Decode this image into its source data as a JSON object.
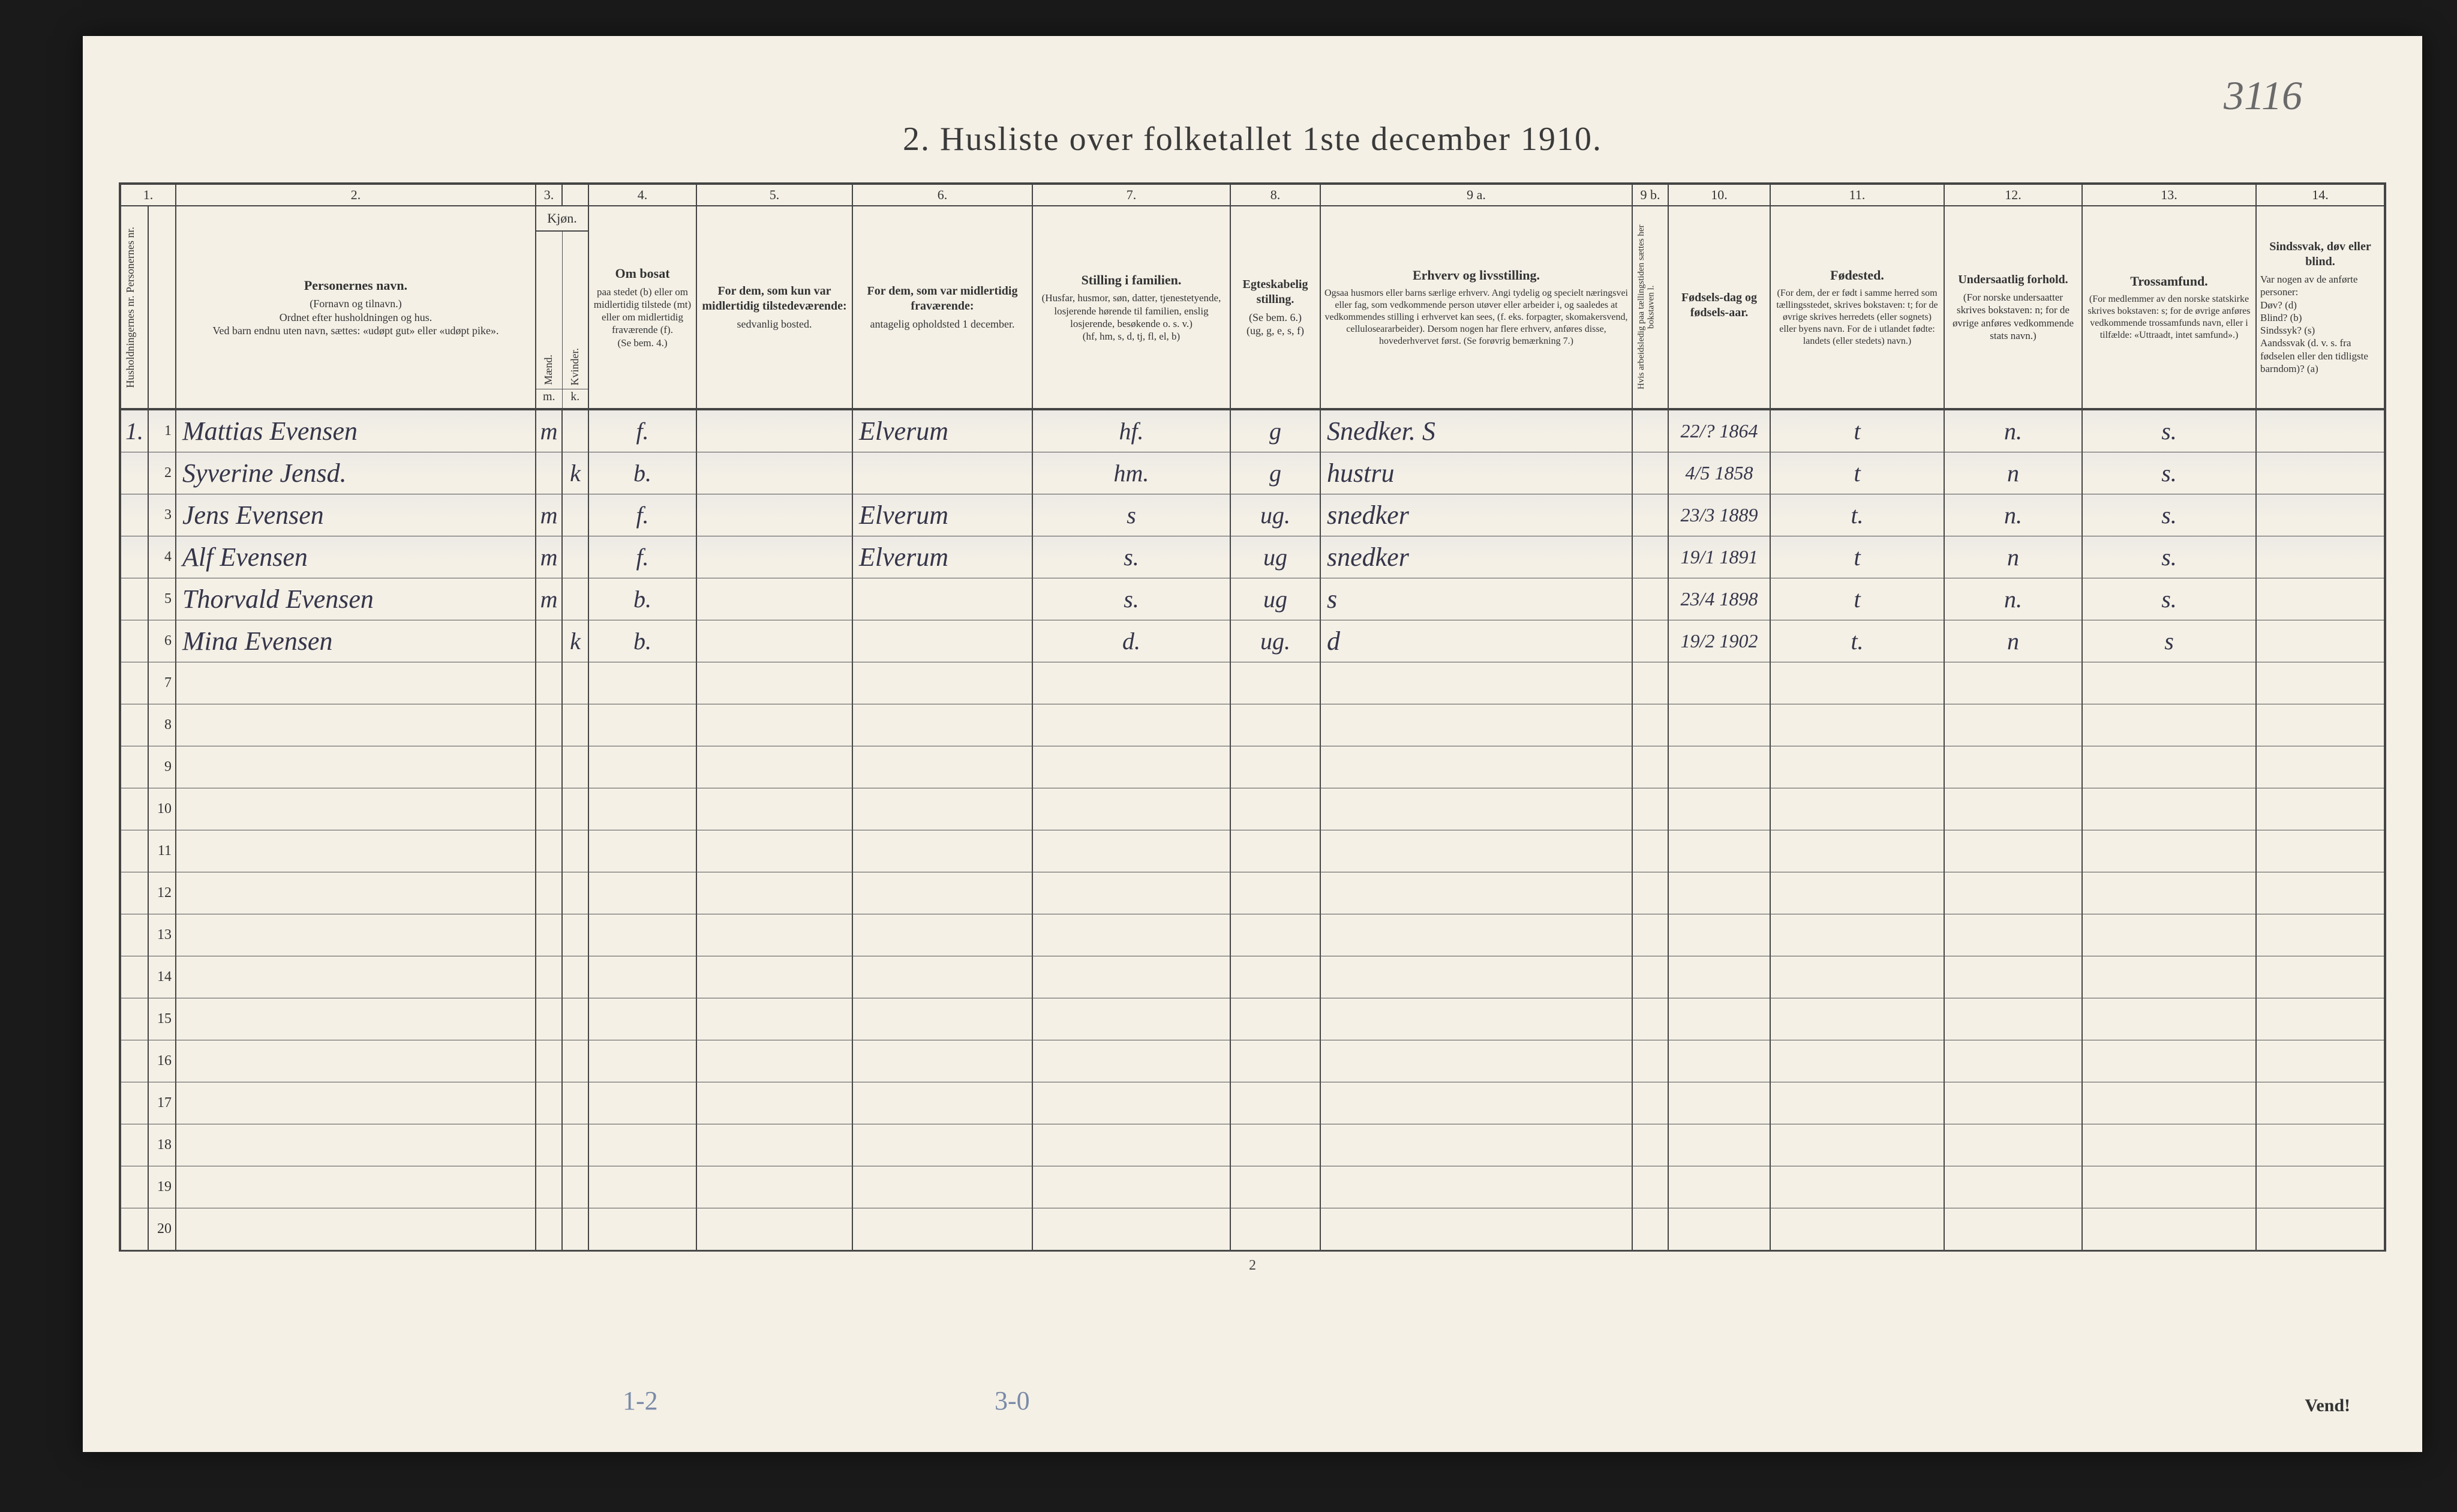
{
  "corner_note": "3116",
  "title": "2.  Husliste over folketallet 1ste december 1910.",
  "col_numbers": [
    "1.",
    "2.",
    "3.",
    "4.",
    "5.",
    "6.",
    "7.",
    "8.",
    "9 a.",
    "9 b.",
    "10.",
    "11.",
    "12.",
    "13.",
    "14."
  ],
  "headers": {
    "c1": "Husholdningernes nr.\nPersonernes nr.",
    "c2_title": "Personernes navn.",
    "c2_sub": "(Fornavn og tilnavn.)\nOrdnet efter husholdningen og hus.\nVed barn endnu uten navn, sættes: «udøpt gut» eller «udøpt pike».",
    "c3_title": "Kjøn.",
    "c3_m": "m.",
    "c3_k": "k.",
    "c4_title": "Om bosat",
    "c4_sub": "paa stedet (b) eller om midlertidig tilstede (mt) eller om midlertidig fraværende (f).\n(Se bem. 4.)",
    "c5_title": "For dem, som kun var midlertidig tilstedeværende:",
    "c5_sub": "sedvanlig bosted.",
    "c6_title": "For dem, som var midlertidig fraværende:",
    "c6_sub": "antagelig opholdsted 1 december.",
    "c7_title": "Stilling i familien.",
    "c7_sub": "(Husfar, husmor, søn, datter, tjenestetyende, losjerende hørende til familien, enslig losjerende, besøkende o. s. v.)\n(hf, hm, s, d, tj, fl, el, b)",
    "c8_title": "Egteskabelig stilling.",
    "c8_sub": "(Se bem. 6.)\n(ug, g, e, s, f)",
    "c9a_title": "Erhverv og livsstilling.",
    "c9a_sub": "Ogsaa husmors eller barns særlige erhverv. Angi tydelig og specielt næringsvei eller fag, som vedkommende person utøver eller arbeider i, og saaledes at vedkommendes stilling i erhvervet kan sees, (f. eks. forpagter, skomakersvend, celluloseararbeider). Dersom nogen har flere erhverv, anføres disse, hovederhvervet først.\n(Se forøvrig bemærkning 7.)",
    "c9b": "Hvis arbeidsledig paa tællingstiden sættes her bokstaven l.",
    "c10_title": "Fødsels-dag og fødsels-aar.",
    "c11_title": "Fødested.",
    "c11_sub": "(For dem, der er født i samme herred som tællingsstedet, skrives bokstaven: t; for de øvrige skrives herredets (eller sognets) eller byens navn. For de i utlandet fødte: landets (eller stedets) navn.)",
    "c12_title": "Undersaatlig forhold.",
    "c12_sub": "(For norske undersaatter skrives bokstaven: n; for de øvrige anføres vedkommende stats navn.)",
    "c13_title": "Trossamfund.",
    "c13_sub": "(For medlemmer av den norske statskirke skrives bokstaven: s; for de øvrige anføres vedkommende trossamfunds navn, eller i tilfælde: «Uttraadt, intet samfund».)",
    "c14_title": "Sindssvak, døv eller blind.",
    "c14_sub": "Var nogen av de anførte personer:\nDøv?  (d)\nBlind?  (b)\nSindssyk?  (s)\nAandssvak (d. v. s. fra fødselen eller den tidligste barndom)?  (a)"
  },
  "rows": [
    {
      "hh": "1.",
      "pn": "1",
      "name": "Mattias Evensen",
      "m": "m",
      "k": "",
      "bf": "f.",
      "c5": "",
      "c6": "Elverum",
      "c7": "hf.",
      "c8": "g",
      "c9": "Snedker. S",
      "c10": "22/? 1864",
      "c11": "t",
      "c12": "n.",
      "c13": "s.",
      "c14": ""
    },
    {
      "hh": "",
      "pn": "2",
      "name": "Syverine Jensd.",
      "m": "",
      "k": "k",
      "bf": "b.",
      "c5": "",
      "c6": "",
      "c7": "hm.",
      "c8": "g",
      "c9": "hustru",
      "c10": "4/5 1858",
      "c11": "t",
      "c12": "n",
      "c13": "s.",
      "c14": ""
    },
    {
      "hh": "",
      "pn": "3",
      "name": "Jens Evensen",
      "m": "m",
      "k": "",
      "bf": "f.",
      "c5": "",
      "c6": "Elverum",
      "c7": "s",
      "c8": "ug.",
      "c9": "snedker",
      "c10": "23/3 1889",
      "c11": "t.",
      "c12": "n.",
      "c13": "s.",
      "c14": ""
    },
    {
      "hh": "",
      "pn": "4",
      "name": "Alf Evensen",
      "m": "m",
      "k": "",
      "bf": "f.",
      "c5": "",
      "c6": "Elverum",
      "c7": "s.",
      "c8": "ug",
      "c9": "snedker",
      "c10": "19/1 1891",
      "c11": "t",
      "c12": "n",
      "c13": "s.",
      "c14": ""
    },
    {
      "hh": "",
      "pn": "5",
      "name": "Thorvald Evensen",
      "m": "m",
      "k": "",
      "bf": "b.",
      "c5": "",
      "c6": "",
      "c7": "s.",
      "c8": "ug",
      "c9": "s",
      "c10": "23/4 1898",
      "c11": "t",
      "c12": "n.",
      "c13": "s.",
      "c14": ""
    },
    {
      "hh": "",
      "pn": "6",
      "name": "Mina Evensen",
      "m": "",
      "k": "k",
      "bf": "b.",
      "c5": "",
      "c6": "",
      "c7": "d.",
      "c8": "ug.",
      "c9": "d",
      "c10": "19/2 1902",
      "c11": "t.",
      "c12": "n",
      "c13": "s",
      "c14": ""
    }
  ],
  "empty_row_nums": [
    "7",
    "8",
    "9",
    "10",
    "11",
    "12",
    "13",
    "14",
    "15",
    "16",
    "17",
    "18",
    "19",
    "20"
  ],
  "page_number": "2",
  "vend": "Vend!",
  "pencil1": "1-2",
  "pencil2": "3-0",
  "colors": {
    "paper": "#f4f0e6",
    "ink": "#333333",
    "handwriting": "#35354a",
    "pencil": "#7a8aa8",
    "border": "#444444"
  }
}
